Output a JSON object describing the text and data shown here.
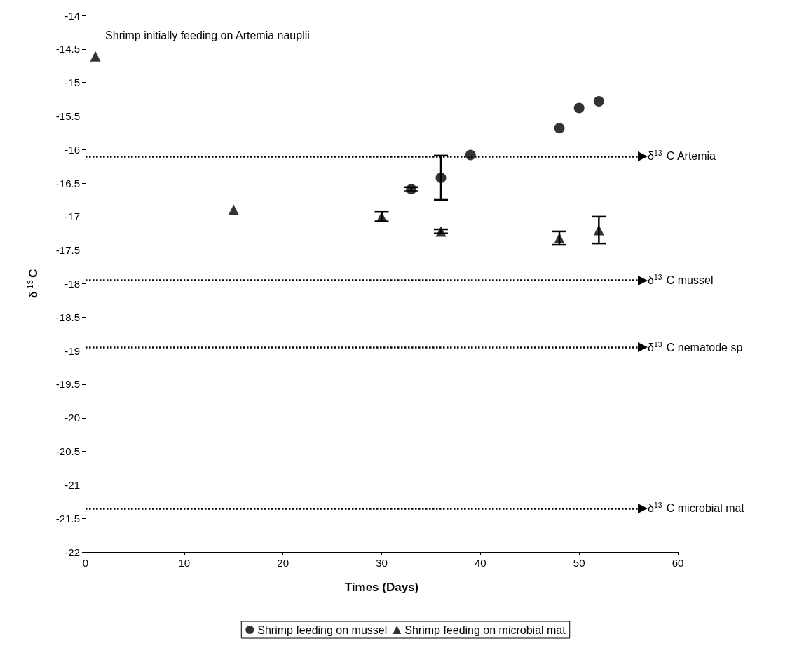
{
  "chart_data": {
    "type": "scatter",
    "xlabel": "Times (Days)",
    "ylabel": "δ$^{13}$C",
    "xlim": [
      0,
      60
    ],
    "xticks": [
      0,
      10,
      20,
      30,
      40,
      50,
      60
    ],
    "ylim": [
      -22,
      -14
    ],
    "yticks": [
      -22,
      -21.5,
      -21,
      -20.5,
      -20,
      -19.5,
      -19,
      -18.5,
      -18,
      -17.5,
      -17,
      -16.5,
      -16,
      -15.5,
      -15,
      -14.5,
      -14
    ],
    "grid": false,
    "legend": "bottom",
    "series": [
      {
        "name": "Shrimp feeding on mussel",
        "color": "#000000",
        "marker": "circle",
        "x": [
          33,
          36,
          39,
          48,
          50,
          52
        ],
        "values": [
          -16.59,
          -16.42,
          -16.08,
          -15.68,
          -15.38,
          -15.28
        ],
        "errors": [
          0.03,
          0.33,
          null,
          null,
          null,
          null
        ]
      },
      {
        "name": "Shrimp feeding on microbial mat",
        "color": "#000000",
        "marker": "triangle",
        "x": [
          1,
          15,
          30,
          36,
          48,
          52
        ],
        "values": [
          -14.61,
          -16.9,
          -17.0,
          -17.22,
          -17.32,
          -17.2
        ],
        "errors": [
          null,
          null,
          0.07,
          0.03,
          0.1,
          0.2
        ]
      }
    ],
    "ref_lines": [
      {
        "axis": "y",
        "value": -16.1,
        "label": "δ$^{13}$C Artemia",
        "line_style": "dotted",
        "color": "#000000"
      },
      {
        "axis": "y",
        "value": -17.95,
        "label": "δ$^{13}$C mussel",
        "line_style": "dotted",
        "color": "#000000"
      },
      {
        "axis": "y",
        "value": -18.95,
        "label": "δ$^{13}$C nematode sp",
        "line_style": "dotted",
        "color": "#000000"
      },
      {
        "axis": "y",
        "value": -21.35,
        "label": "δ$^{13}$C microbial mat",
        "line_style": "dotted",
        "color": "#000000"
      }
    ],
    "annotations": [
      {
        "text": "Shrimp initially feeding on Artemia nauplii",
        "x": 1,
        "y": -14.61
      }
    ]
  }
}
